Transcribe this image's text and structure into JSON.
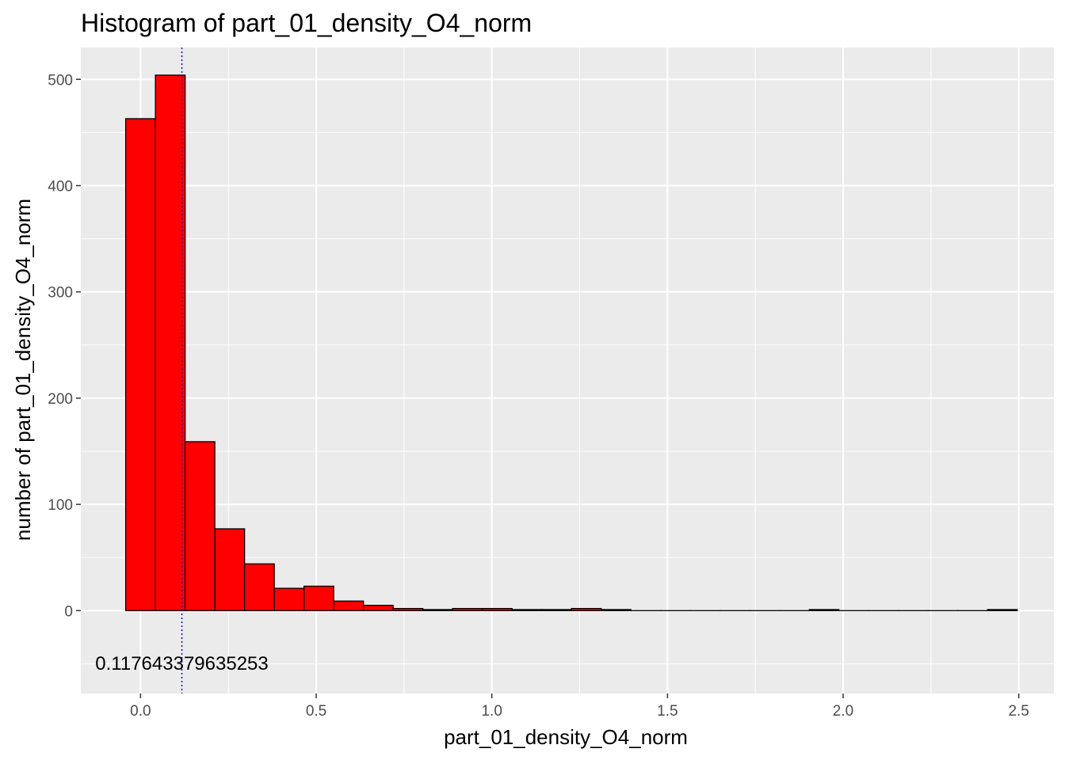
{
  "chart_data": {
    "type": "bar",
    "title": "Histogram of  part_01_density_O4_norm",
    "xlabel": "part_01_density_O4_norm",
    "ylabel": "number of  part_01_density_O4_norm",
    "xlim": [
      -0.17,
      2.6
    ],
    "ylim": [
      -78,
      530
    ],
    "x_ticks": [
      0.0,
      0.5,
      1.0,
      1.5,
      2.0,
      2.5
    ],
    "x_tick_labels": [
      "0.0",
      "0.5",
      "1.0",
      "1.5",
      "2.0",
      "2.5"
    ],
    "y_ticks": [
      0,
      100,
      200,
      300,
      400,
      500
    ],
    "y_tick_labels": [
      "0",
      "100",
      "200",
      "300",
      "400",
      "500"
    ],
    "grid": true,
    "bin_width": 0.0846,
    "bin_centers": [
      0.0,
      0.0846,
      0.1692,
      0.2538,
      0.3384,
      0.423,
      0.5076,
      0.5922,
      0.6768,
      0.7614,
      0.846,
      0.9306,
      1.0152,
      1.0998,
      1.1844,
      1.269,
      1.3536,
      1.4382,
      1.5228,
      1.6074,
      1.692,
      1.7766,
      1.8612,
      1.9458,
      2.0304,
      2.115,
      2.1996,
      2.2842,
      2.3688,
      2.4534
    ],
    "values": [
      463,
      504,
      159,
      77,
      44,
      21,
      23,
      9,
      5,
      2,
      1,
      2,
      2,
      1,
      1,
      2,
      1,
      0,
      0,
      0,
      0,
      0,
      0,
      1,
      0,
      0,
      0,
      0,
      0,
      1
    ],
    "vline": {
      "x": 0.117643379635253,
      "label": "0.117643379635253"
    },
    "colors": {
      "bar_fill": "#ff0000",
      "bar_stroke": "#000000",
      "panel": "#ebebeb",
      "grid": "#ffffff",
      "vline": "#0000ff"
    }
  }
}
